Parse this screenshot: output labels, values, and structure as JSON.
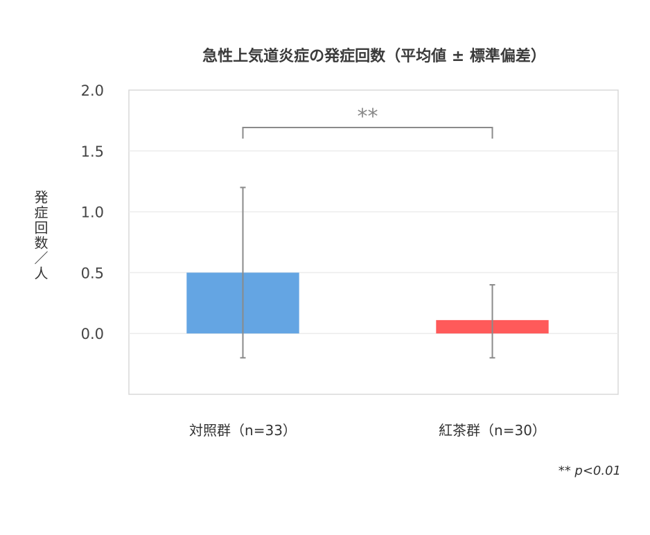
{
  "chart_data": {
    "type": "bar",
    "title": "急性上気道炎症の発症回数（平均値 ± 標準偏差）",
    "ylabel": "発症回数／人",
    "ylim": [
      -0.5,
      2.0
    ],
    "yticks": [
      0.0,
      0.5,
      1.0,
      1.5,
      2.0
    ],
    "ytick_labels": [
      "0.0",
      "0.5",
      "1.0",
      "1.5",
      "2.0"
    ],
    "grid": true,
    "categories": [
      "対照群（n=33）",
      "紅茶群（n=30）"
    ],
    "values": [
      0.5,
      0.11
    ],
    "error_upper": [
      1.2,
      0.4
    ],
    "error_lower": [
      -0.2,
      -0.2
    ],
    "colors": [
      "#64a5e3",
      "#ff5a5a"
    ],
    "significance": {
      "label": "**",
      "between": [
        0,
        1
      ]
    },
    "footnote": "** p<0.01"
  }
}
